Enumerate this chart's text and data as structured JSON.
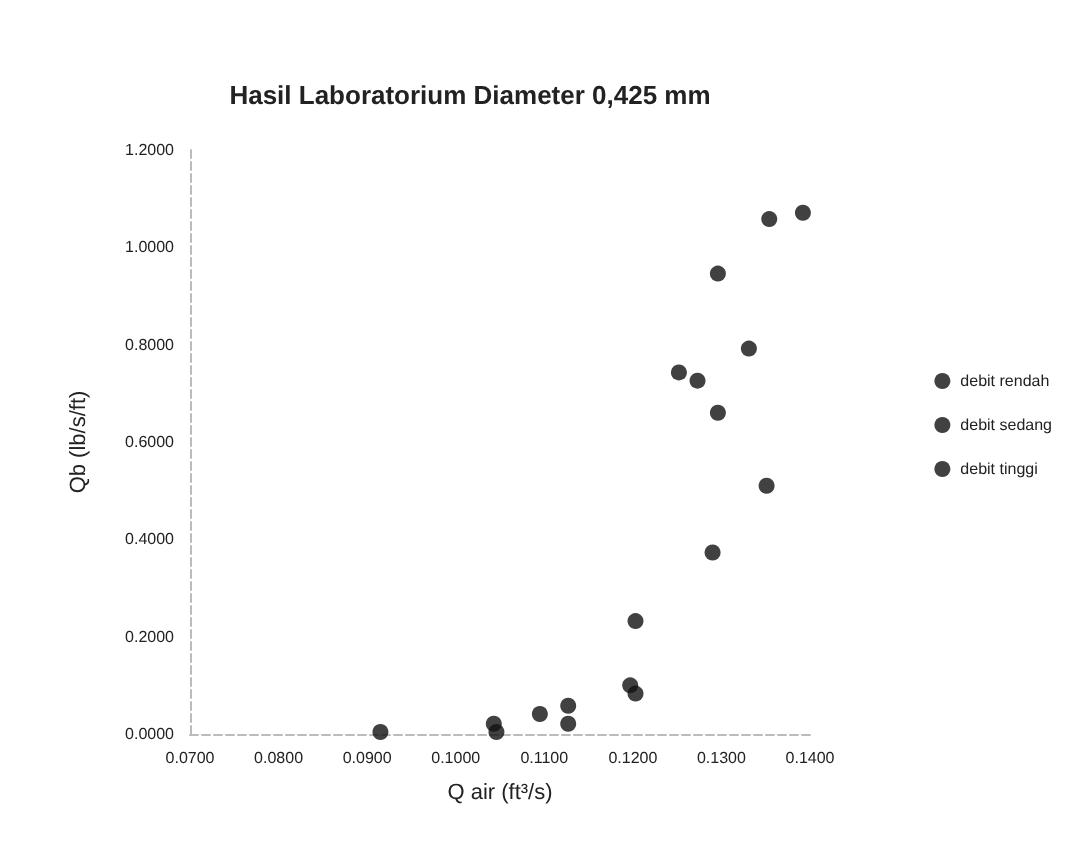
{
  "chart_data": {
    "type": "scatter",
    "title": "Hasil Laboratorium Diameter 0,425 mm",
    "xlabel": "Q air (ft³/s)",
    "ylabel": "Qb (lb/s/ft)",
    "xlim": [
      0.07,
      0.14
    ],
    "xticks": [
      {
        "value": 0.07,
        "label": "0.0700"
      },
      {
        "value": 0.08,
        "label": "0.0800"
      },
      {
        "value": 0.09,
        "label": "0.0900"
      },
      {
        "value": 0.1,
        "label": "0.1000"
      },
      {
        "value": 0.11,
        "label": "0.1100"
      },
      {
        "value": 0.12,
        "label": "0.1200"
      },
      {
        "value": 0.13,
        "label": "0.1300"
      },
      {
        "value": 0.14,
        "label": "0.1400"
      }
    ],
    "ylim": [
      0,
      1.2
    ],
    "yticks": [
      {
        "value": 0,
        "label": "0.0000"
      },
      {
        "value": 0.2,
        "label": "0.2000"
      },
      {
        "value": 0.4,
        "label": "0.4000"
      },
      {
        "value": 0.6,
        "label": "0.6000"
      },
      {
        "value": 0.8,
        "label": "0.8000"
      },
      {
        "value": 1,
        "label": "1.0000"
      },
      {
        "value": 1.2,
        "label": "1.2000"
      }
    ],
    "grid": false,
    "legend": "right",
    "marker": "circle",
    "series": [
      {
        "name": "debit rendah",
        "color": "#111111",
        "x": [
          0.0915,
          0.1043,
          0.1046,
          0.1095,
          0.1127,
          0.1127
        ],
        "values": [
          0.004,
          0.021,
          0.004,
          0.041,
          0.058,
          0.021
        ]
      },
      {
        "name": "debit sedang",
        "color": "#111111",
        "x": [
          0.1197,
          0.1203,
          0.1203,
          0.129,
          0.1351,
          0.1296
        ],
        "values": [
          0.1,
          0.083,
          0.232,
          0.373,
          0.51,
          0.66
        ]
      },
      {
        "name": "debit tinggi",
        "color": "#111111",
        "x": [
          0.1252,
          0.1273,
          0.1331,
          0.1296,
          0.1354,
          0.1392
        ],
        "values": [
          0.743,
          0.726,
          0.792,
          0.946,
          1.058,
          1.071
        ]
      }
    ]
  }
}
